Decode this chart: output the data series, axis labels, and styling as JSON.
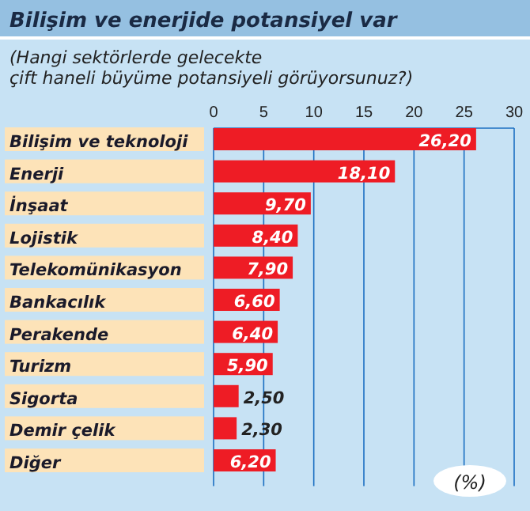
{
  "chart_data": {
    "type": "bar",
    "orientation": "horizontal",
    "title": "Bilişim ve enerjide potansiyel var",
    "subtitle": "(Hangi sektörlerde gelecekte\nçift haneli büyüme potansiyeli görüyorsunuz?)",
    "categories": [
      "Bilişim ve teknoloji",
      "Enerji",
      "İnşaat",
      "Lojistik",
      "Telekomünikasyon",
      "Bankacılık",
      "Perakende",
      "Turizm",
      "Sigorta",
      "Demir çelik",
      "Diğer"
    ],
    "values": [
      26.2,
      18.1,
      9.7,
      8.4,
      7.9,
      6.6,
      6.4,
      5.9,
      2.5,
      2.3,
      6.2
    ],
    "value_labels": [
      "26,20",
      "18,10",
      "9,70",
      "8,40",
      "7,90",
      "6,60",
      "6,40",
      "5,90",
      "2,50",
      "2,30",
      "6,20"
    ],
    "color": "#ee1c25",
    "xlim": [
      0,
      30
    ],
    "xticks": [
      0,
      5,
      10,
      15,
      20,
      25,
      30
    ],
    "grid": "x",
    "annotations": [
      "(%)"
    ]
  }
}
